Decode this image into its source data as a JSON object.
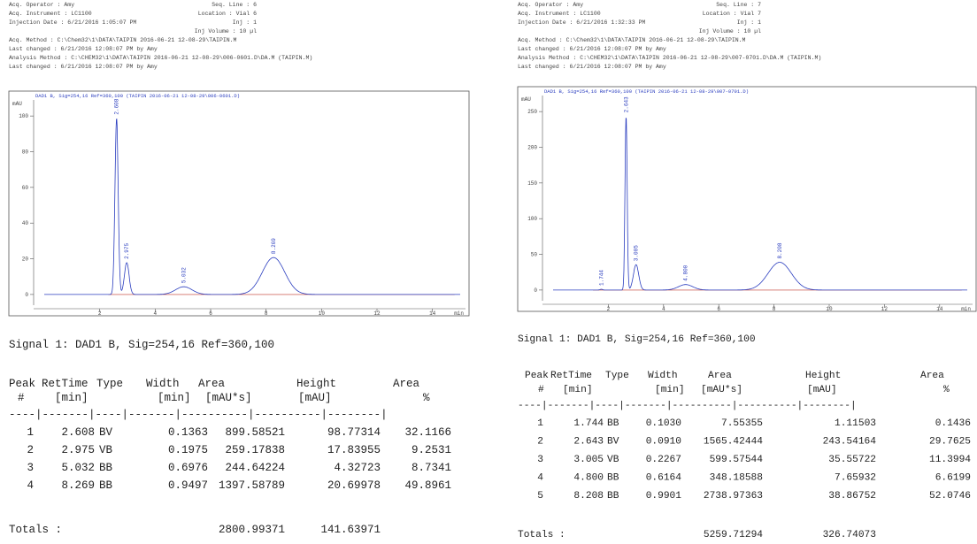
{
  "panels": [
    {
      "header": {
        "left": [
          "Acq. Operator   : Amy",
          "Acq. Instrument : LC1100",
          "Injection Date  : 6/21/2016 1:05:07 PM",
          "Acq. Method     : C:\\Chem32\\1\\DATA\\TAIPIN  2016-06-21 12-08-29\\TAIPIN.M",
          "Last changed    : 6/21/2016 12:08:07 PM by Amy",
          "Analysis Method : C:\\CHEM32\\1\\DATA\\TAIPIN  2016-06-21 12-08-29\\006-0601.D\\DA.M (TAIPIN.M)",
          "Last changed    : 6/21/2016 12:08:07 PM by Amy"
        ],
        "right": [
          "Seq. Line :   6",
          "Location : Vial 6",
          "Inj :   1",
          "Inj Volume : 10 µl"
        ]
      },
      "chart": {
        "caption": "DAD1 B, Sig=254,16 Ref=360,100 (TAIPIN 2016-06-21 12-08-29\\006-0601.D)",
        "yunit": "mAU",
        "xunit": "min",
        "yticks": [
          0,
          20,
          40,
          60,
          80,
          100
        ],
        "xticks": [
          2,
          4,
          6,
          8,
          10,
          12,
          14
        ]
      },
      "signal": "Signal 1: DAD1 B, Sig=254,16 Ref=360,100",
      "table": {
        "head1": [
          "Peak",
          "RetTime",
          "Type",
          "Width",
          "Area",
          "Height",
          "Area"
        ],
        "head2": [
          "#",
          "[min]",
          "[min]",
          "[mAU*s]",
          "[mAU]",
          "%"
        ],
        "rule": "----|-------|----|-------|----------|----------|--------|",
        "rows": [
          [
            "1",
            "2.608",
            "BV",
            "0.1363",
            "899.58521",
            "98.77314",
            "32.1166"
          ],
          [
            "2",
            "2.975",
            "VB",
            "0.1975",
            "259.17838",
            "17.83955",
            "9.2531"
          ],
          [
            "3",
            "5.032",
            "BB",
            "0.6976",
            "244.64224",
            "4.32723",
            "8.7341"
          ],
          [
            "4",
            "8.269",
            "BB",
            "0.9497",
            "1397.58789",
            "20.69978",
            "49.8961"
          ]
        ]
      },
      "totals": {
        "label": "Totals :",
        "area": "2800.99371",
        "height": "141.63971"
      }
    },
    {
      "header": {
        "left": [
          "Acq. Operator   : Amy",
          "Acq. Instrument : LC1100",
          "Injection Date  : 6/21/2016 1:32:33 PM",
          "Acq. Method     : C:\\Chem32\\1\\DATA\\TAIPIN  2016-06-21 12-08-29\\TAIPIN.M",
          "Last changed    : 6/21/2016 12:08:07 PM by Amy",
          "Analysis Method : C:\\CHEM32\\1\\DATA\\TAIPIN  2016-06-21 12-08-29\\007-0701.D\\DA.M (TAIPIN.M)",
          "Last changed    : 6/21/2016 12:08:07 PM by Amy"
        ],
        "right": [
          "Seq. Line :   7",
          "Location : Vial 7",
          "Inj :   1",
          "Inj Volume : 10 µl"
        ]
      },
      "chart": {
        "caption": "DAD1 B, Sig=254,16 Ref=360,100 (TAIPIN 2016-06-21 12-08-29\\007-0701.D)",
        "yunit": "mAU",
        "xunit": "min",
        "yticks": [
          0,
          50,
          100,
          150,
          200,
          250
        ],
        "xticks": [
          2,
          4,
          6,
          8,
          10,
          12,
          14
        ]
      },
      "signal": "Signal 1: DAD1 B, Sig=254,16 Ref=360,100",
      "table": {
        "head1": [
          "Peak",
          "RetTime",
          "Type",
          "Width",
          "Area",
          "Height",
          "Area"
        ],
        "head2": [
          "#",
          "[min]",
          "[min]",
          "[mAU*s]",
          "[mAU]",
          "%"
        ],
        "rule": "----|-------|----|-------|----------|----------|--------|",
        "rows": [
          [
            "1",
            "1.744",
            "BB",
            "0.1030",
            "7.55355",
            "1.11503",
            "0.1436"
          ],
          [
            "2",
            "2.643",
            "BV",
            "0.0910",
            "1565.42444",
            "243.54164",
            "29.7625"
          ],
          [
            "3",
            "3.005",
            "VB",
            "0.2267",
            "599.57544",
            "35.55722",
            "11.3994"
          ],
          [
            "4",
            "4.800",
            "BB",
            "0.6164",
            "348.18588",
            "7.65932",
            "6.6199"
          ],
          [
            "5",
            "8.208",
            "BB",
            "0.9901",
            "2738.97363",
            "38.86752",
            "52.0746"
          ]
        ]
      },
      "totals": {
        "label": "Totals :",
        "area": "5259.71294",
        "height": "326.74073"
      }
    }
  ]
}
